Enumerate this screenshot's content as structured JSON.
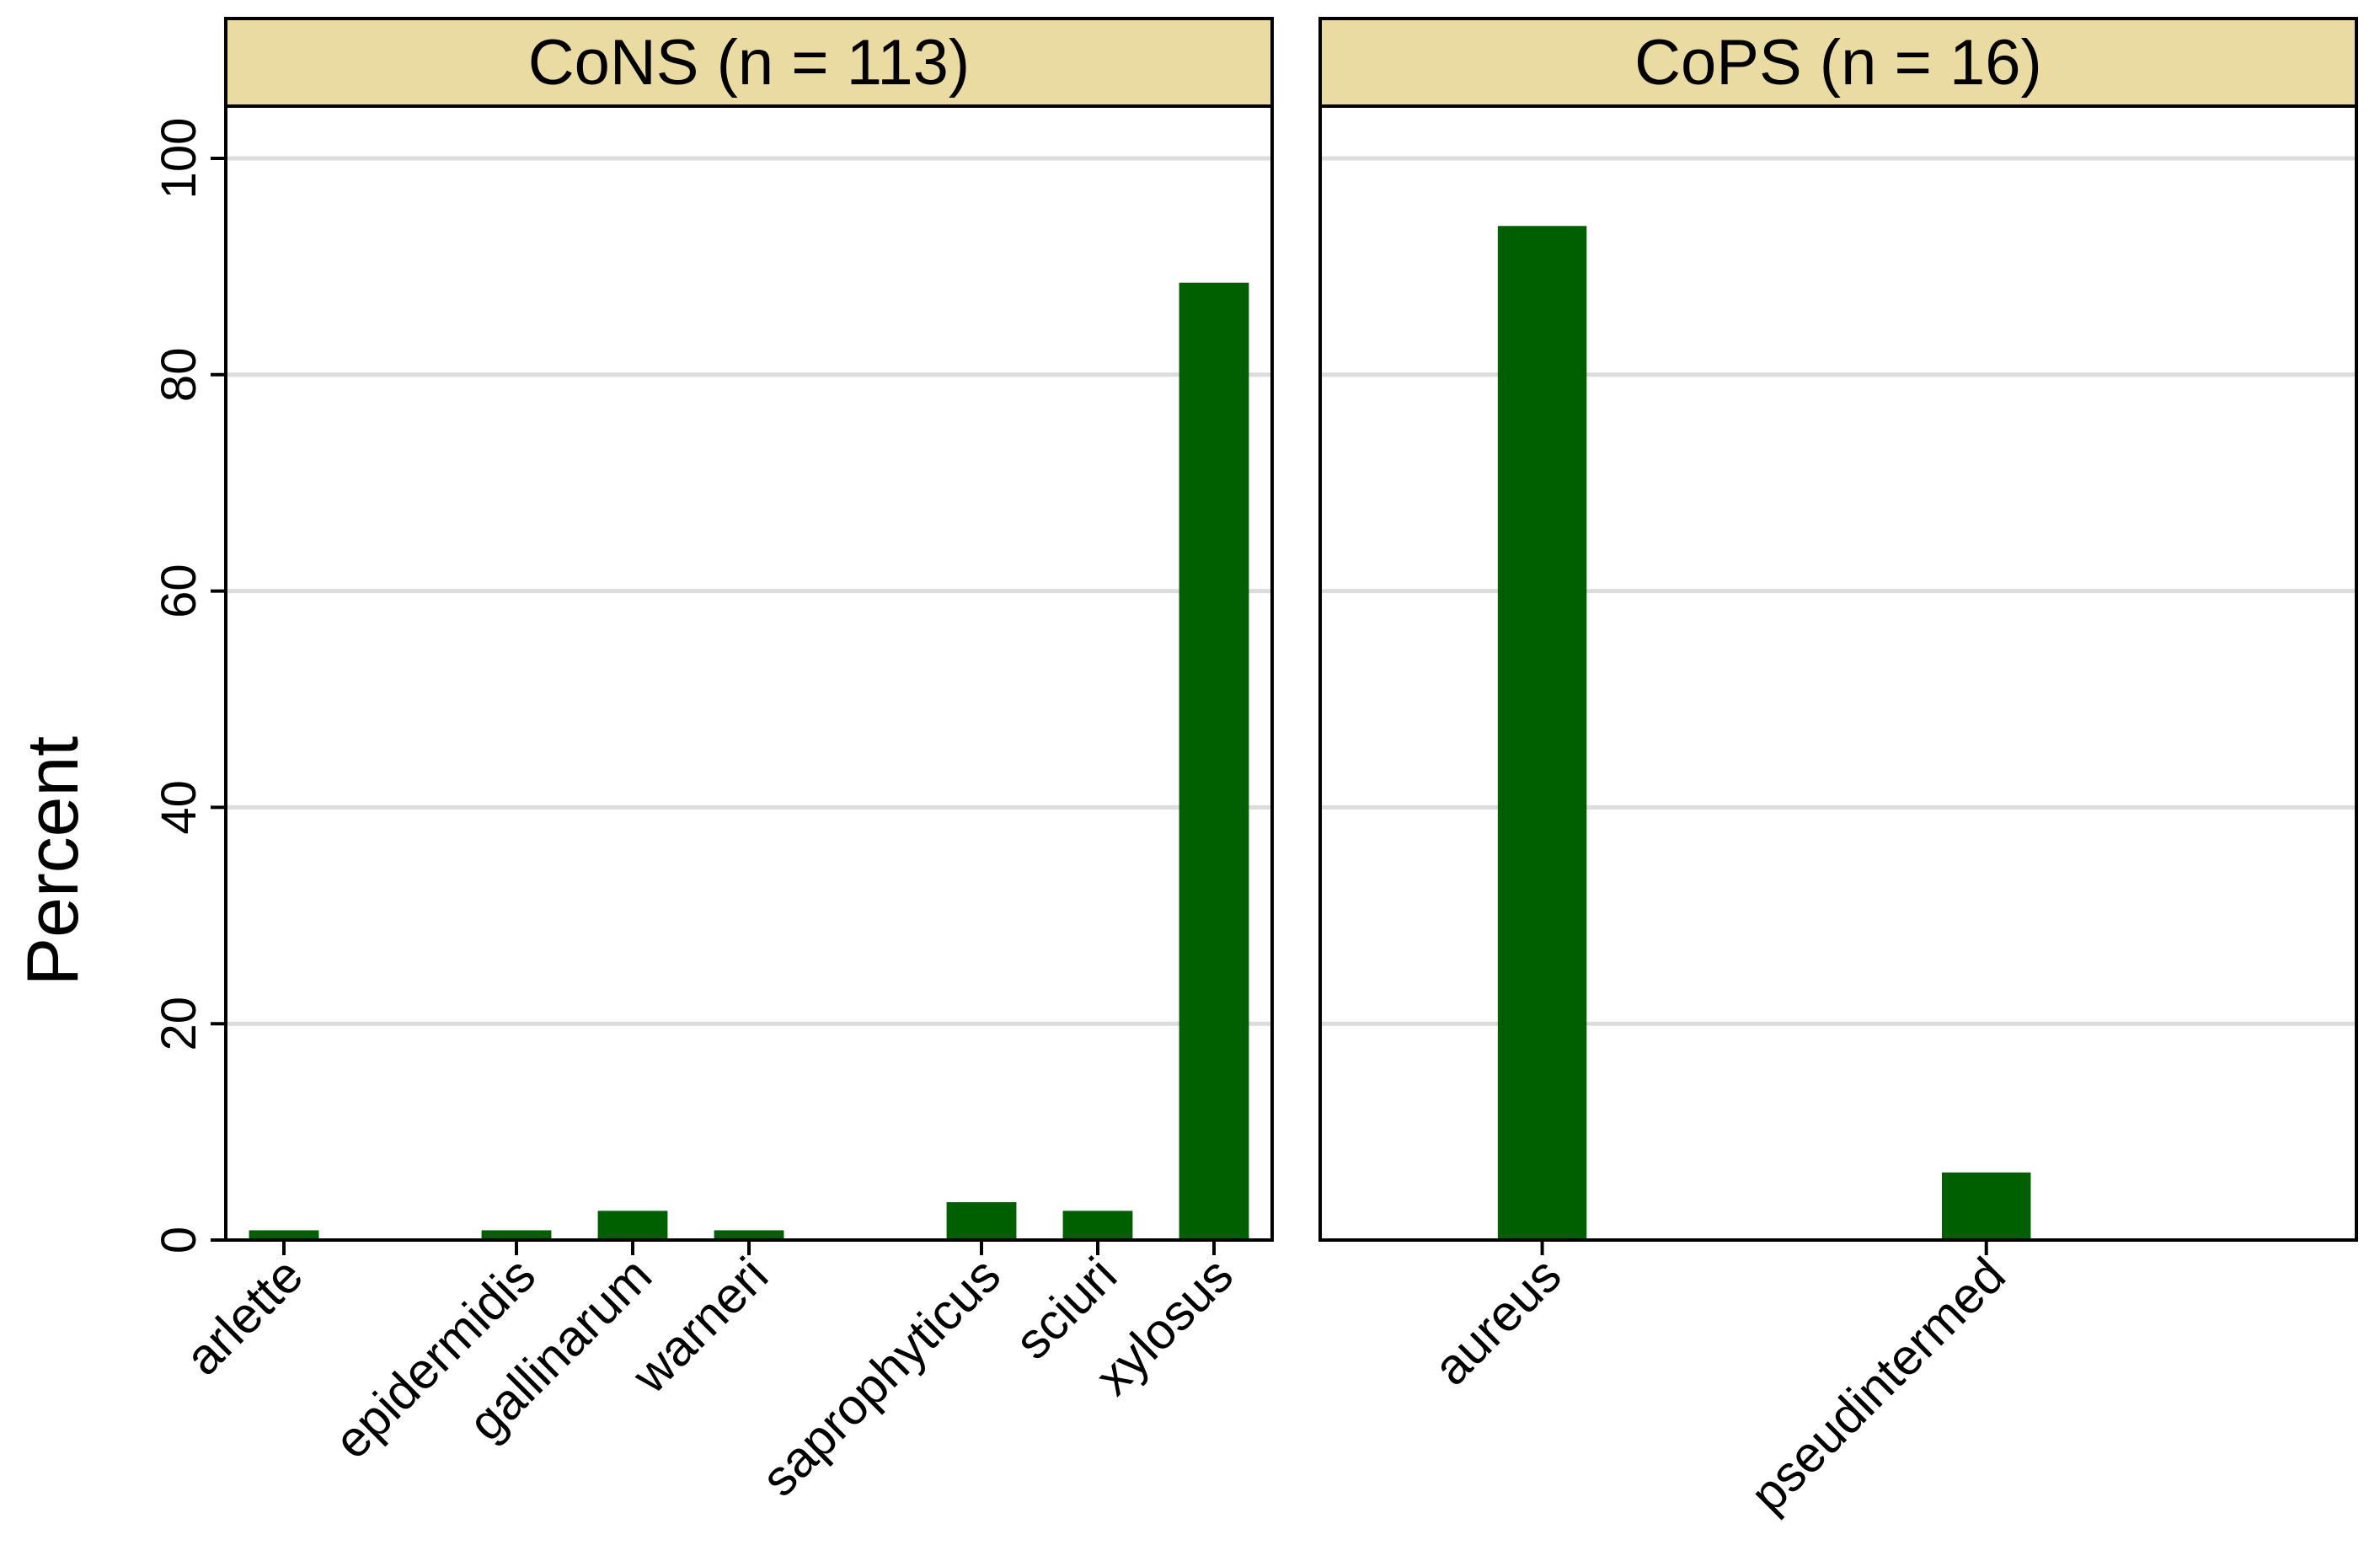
{
  "chart_data": [
    {
      "type": "bar",
      "title": "CoNS (n = 113)",
      "ylabel": "Percent",
      "ylim": [
        0,
        105
      ],
      "yticks": [
        0,
        20,
        40,
        60,
        80,
        100
      ],
      "grid": true,
      "categories": [
        "arlette",
        "",
        "epidermidis",
        "gallinarum",
        "warneri",
        "",
        "saprophyticus",
        "sciuri",
        "xylosus"
      ],
      "values": [
        0.9,
        0,
        0.9,
        2.7,
        0.9,
        0,
        3.5,
        2.7,
        88.5
      ]
    },
    {
      "type": "bar",
      "title": "CoPS (n = 16)",
      "ylim": [
        0,
        105
      ],
      "yticks": [
        0,
        20,
        40,
        60,
        80,
        100
      ],
      "grid": true,
      "categories": [
        "",
        "aureus",
        "",
        "",
        "pseudintermed",
        "",
        ""
      ],
      "values": [
        0,
        93.75,
        0,
        0,
        6.25,
        0,
        0
      ]
    }
  ],
  "colors": {
    "bar": "#006000",
    "strip_fill": "#eadba2",
    "grid": "#dcdcdc",
    "frame": "#000000"
  }
}
